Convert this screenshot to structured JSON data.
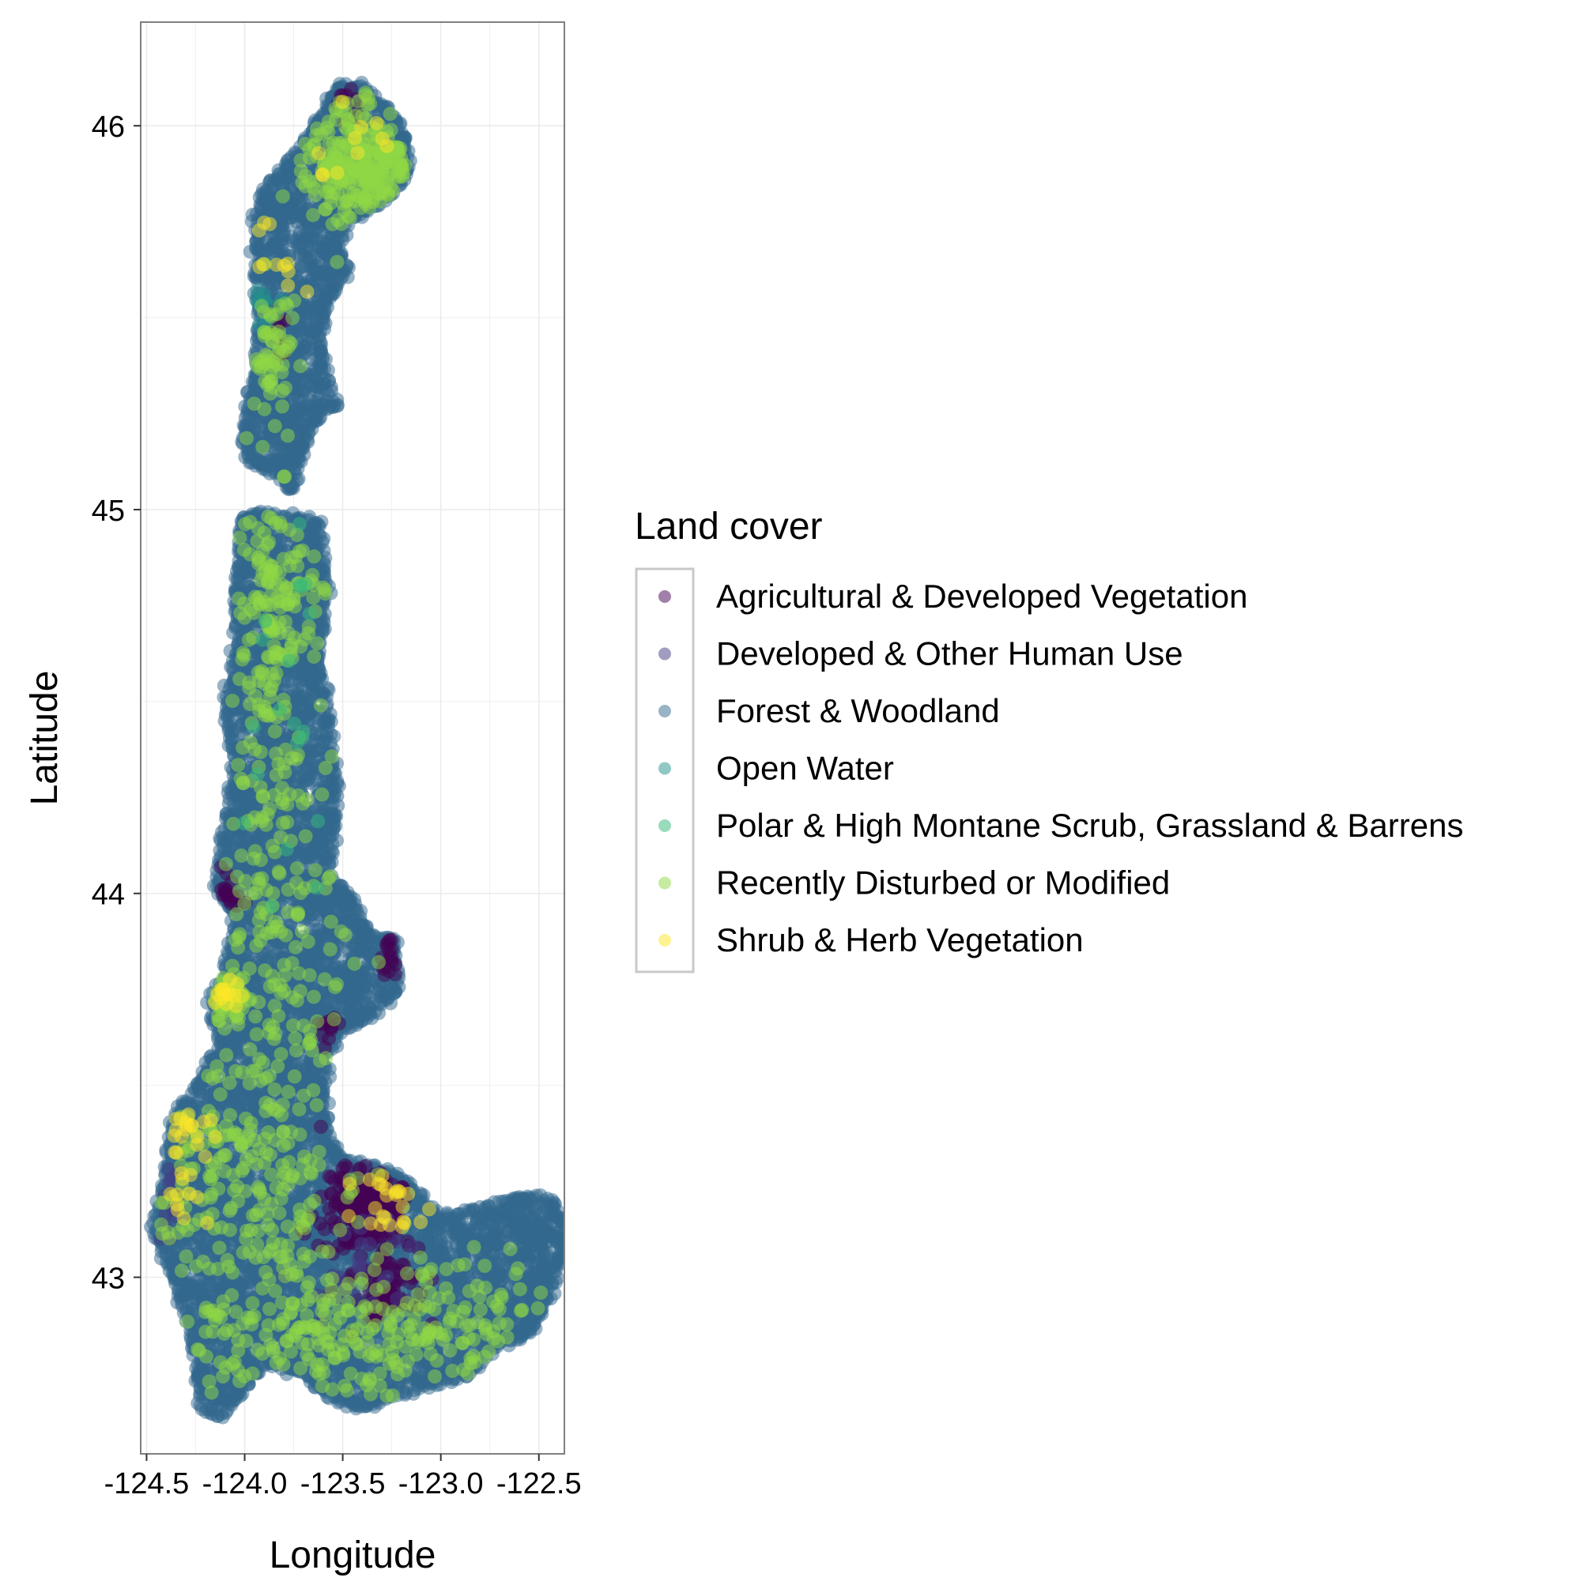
{
  "chart_data": {
    "type": "scatter",
    "xlabel": "Longitude",
    "ylabel": "Latitude",
    "xlim": [
      -124.53,
      -122.37
    ],
    "ylim": [
      42.54,
      46.27
    ],
    "x_ticks": [
      -124.5,
      -124.0,
      -123.5,
      -123.0,
      -122.5
    ],
    "x_tick_labels": [
      "-124.5",
      "-124.0",
      "-123.5",
      "-123.0",
      "-122.5"
    ],
    "y_ticks": [
      43,
      44,
      45,
      46
    ],
    "y_tick_labels": [
      "43",
      "44",
      "45",
      "46"
    ],
    "grid": true,
    "legend": {
      "title": "Land cover",
      "placement": "right",
      "entries": [
        {
          "label": "Agricultural & Developed Vegetation",
          "color": "#440154"
        },
        {
          "label": "Developed & Other Human Use",
          "color": "#443983"
        },
        {
          "label": "Forest & Woodland",
          "color": "#31688e"
        },
        {
          "label": "Open Water",
          "color": "#21918c"
        },
        {
          "label": "Polar & High Montane Scrub, Grassland & Barrens",
          "color": "#35b779"
        },
        {
          "label": "Recently Disturbed or Modified",
          "color": "#90d743"
        },
        {
          "label": "Shrub & Herb Vegetation",
          "color": "#fde725"
        }
      ]
    },
    "point_alpha": 0.5,
    "region_outline": [
      [
        -123.78,
        45.07
      ],
      [
        -123.86,
        45.1
      ],
      [
        -123.98,
        45.13
      ],
      [
        -124.0,
        45.22
      ],
      [
        -123.95,
        45.35
      ],
      [
        -123.93,
        45.5
      ],
      [
        -123.95,
        45.62
      ],
      [
        -123.94,
        45.78
      ],
      [
        -123.88,
        45.85
      ],
      [
        -123.7,
        45.95
      ],
      [
        -123.58,
        46.05
      ],
      [
        -123.52,
        46.1
      ],
      [
        -123.4,
        46.1
      ],
      [
        -123.25,
        46.03
      ],
      [
        -123.18,
        45.97
      ],
      [
        -123.17,
        45.88
      ],
      [
        -123.25,
        45.82
      ],
      [
        -123.38,
        45.78
      ],
      [
        -123.5,
        45.75
      ],
      [
        -123.53,
        45.68
      ],
      [
        -123.48,
        45.62
      ],
      [
        -123.58,
        45.55
      ],
      [
        -123.62,
        45.45
      ],
      [
        -123.54,
        45.28
      ],
      [
        -123.63,
        45.24
      ],
      [
        -123.72,
        45.15
      ],
      [
        -123.75,
        45.06
      ],
      [
        -123.78,
        45.07
      ]
    ],
    "region_outline_south": [
      [
        -124.02,
        44.98
      ],
      [
        -123.85,
        44.99
      ],
      [
        -123.62,
        44.97
      ],
      [
        -123.58,
        44.78
      ],
      [
        -123.62,
        44.6
      ],
      [
        -123.57,
        44.45
      ],
      [
        -123.55,
        44.35
      ],
      [
        -123.53,
        44.22
      ],
      [
        -123.57,
        44.05
      ],
      [
        -123.45,
        43.98
      ],
      [
        -123.4,
        43.92
      ],
      [
        -123.35,
        43.88
      ],
      [
        -123.24,
        43.88
      ],
      [
        -123.22,
        43.75
      ],
      [
        -123.37,
        43.68
      ],
      [
        -123.5,
        43.65
      ],
      [
        -123.58,
        43.58
      ],
      [
        -123.6,
        43.45
      ],
      [
        -123.58,
        43.35
      ],
      [
        -123.48,
        43.3
      ],
      [
        -123.3,
        43.28
      ],
      [
        -123.18,
        43.25
      ],
      [
        -123.0,
        43.15
      ],
      [
        -122.82,
        43.18
      ],
      [
        -122.6,
        43.21
      ],
      [
        -122.45,
        43.2
      ],
      [
        -122.38,
        43.15
      ],
      [
        -122.38,
        43.05
      ],
      [
        -122.45,
        42.95
      ],
      [
        -122.55,
        42.85
      ],
      [
        -122.7,
        42.83
      ],
      [
        -122.85,
        42.75
      ],
      [
        -123.0,
        42.73
      ],
      [
        -123.2,
        42.7
      ],
      [
        -123.4,
        42.66
      ],
      [
        -123.55,
        42.68
      ],
      [
        -123.7,
        42.75
      ],
      [
        -123.9,
        42.78
      ],
      [
        -124.02,
        42.7
      ],
      [
        -124.12,
        42.64
      ],
      [
        -124.22,
        42.66
      ],
      [
        -124.25,
        42.78
      ],
      [
        -124.3,
        42.9
      ],
      [
        -124.38,
        43.02
      ],
      [
        -124.46,
        43.12
      ],
      [
        -124.4,
        43.28
      ],
      [
        -124.36,
        43.42
      ],
      [
        -124.25,
        43.5
      ],
      [
        -124.18,
        43.56
      ],
      [
        -124.1,
        43.6
      ],
      [
        -124.18,
        43.7
      ],
      [
        -124.1,
        43.8
      ],
      [
        -124.05,
        43.95
      ],
      [
        -124.15,
        44.02
      ],
      [
        -124.1,
        44.18
      ],
      [
        -124.05,
        44.35
      ],
      [
        -124.1,
        44.47
      ],
      [
        -124.05,
        44.62
      ],
      [
        -124.05,
        44.8
      ],
      [
        -124.02,
        44.98
      ]
    ],
    "clusters": [
      {
        "category": 0,
        "center": [
          -123.42,
          43.18
        ],
        "spread": [
          0.1,
          0.07
        ],
        "count": 150
      },
      {
        "category": 0,
        "center": [
          -123.28,
          42.98
        ],
        "spread": [
          0.08,
          0.05
        ],
        "count": 70
      },
      {
        "category": 0,
        "center": [
          -123.3,
          43.2
        ],
        "spread": [
          0.06,
          0.05
        ],
        "count": 40
      },
      {
        "category": 0,
        "center": [
          -124.1,
          44.0
        ],
        "spread": [
          0.04,
          0.03
        ],
        "count": 20
      },
      {
        "category": 0,
        "center": [
          -123.22,
          43.84
        ],
        "spread": [
          0.04,
          0.04
        ],
        "count": 18
      },
      {
        "category": 0,
        "center": [
          -123.58,
          43.65
        ],
        "spread": [
          0.03,
          0.02
        ],
        "count": 12
      },
      {
        "category": 0,
        "center": [
          -123.48,
          46.08
        ],
        "spread": [
          0.05,
          0.03
        ],
        "count": 10
      },
      {
        "category": 0,
        "center": [
          -123.83,
          45.46
        ],
        "spread": [
          0.04,
          0.04
        ],
        "count": 10
      },
      {
        "category": 1,
        "center": [
          -123.35,
          43.08
        ],
        "spread": [
          0.15,
          0.1
        ],
        "count": 30
      },
      {
        "category": 1,
        "center": [
          -124.38,
          43.2
        ],
        "spread": [
          0.05,
          0.08
        ],
        "count": 15
      },
      {
        "category": 3,
        "center": [
          -123.9,
          45.5
        ],
        "spread": [
          0.05,
          0.05
        ],
        "count": 12
      },
      {
        "category": 5,
        "center": [
          -123.4,
          45.9
        ],
        "spread": [
          0.16,
          0.08
        ],
        "count": 260
      },
      {
        "category": 5,
        "center": [
          -123.85,
          45.4
        ],
        "spread": [
          0.06,
          0.1
        ],
        "count": 60
      },
      {
        "category": 5,
        "center": [
          -123.82,
          44.78
        ],
        "spread": [
          0.1,
          0.15
        ],
        "count": 120
      },
      {
        "category": 5,
        "center": [
          -123.9,
          44.4
        ],
        "spread": [
          0.1,
          0.2
        ],
        "count": 70
      },
      {
        "category": 5,
        "center": [
          -123.8,
          43.95
        ],
        "spread": [
          0.2,
          0.2
        ],
        "count": 110
      },
      {
        "category": 5,
        "center": [
          -124.1,
          43.72
        ],
        "spread": [
          0.06,
          0.05
        ],
        "count": 40
      },
      {
        "category": 5,
        "center": [
          -124.0,
          43.3
        ],
        "spread": [
          0.3,
          0.2
        ],
        "count": 240
      },
      {
        "category": 5,
        "center": [
          -123.6,
          42.85
        ],
        "spread": [
          0.4,
          0.1
        ],
        "count": 200
      },
      {
        "category": 5,
        "center": [
          -122.9,
          42.85
        ],
        "spread": [
          0.3,
          0.1
        ],
        "count": 80
      },
      {
        "category": 6,
        "center": [
          -124.3,
          43.35
        ],
        "spread": [
          0.06,
          0.1
        ],
        "count": 30
      },
      {
        "category": 6,
        "center": [
          -123.28,
          43.2
        ],
        "spread": [
          0.1,
          0.06
        ],
        "count": 25
      },
      {
        "category": 6,
        "center": [
          -124.1,
          43.75
        ],
        "spread": [
          0.05,
          0.03
        ],
        "count": 15
      },
      {
        "category": 6,
        "center": [
          -123.8,
          45.7
        ],
        "spread": [
          0.08,
          0.1
        ],
        "count": 12
      },
      {
        "category": 6,
        "center": [
          -123.45,
          45.95
        ],
        "spread": [
          0.12,
          0.05
        ],
        "count": 10
      },
      {
        "category": 4,
        "center": [
          -123.7,
          44.6
        ],
        "spread": [
          0.2,
          0.3
        ],
        "count": 20
      }
    ]
  }
}
